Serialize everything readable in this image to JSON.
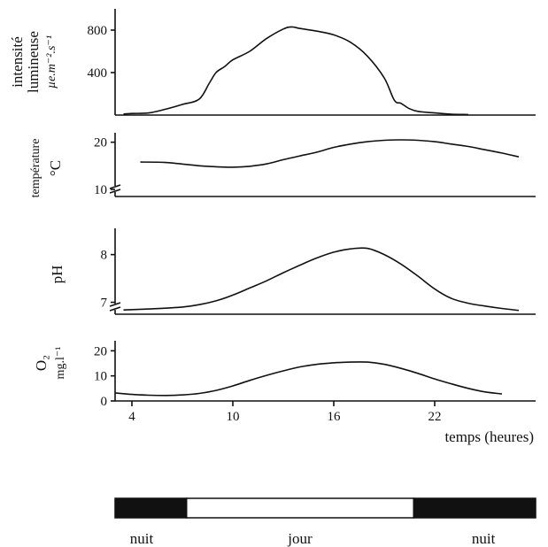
{
  "chart_data": [
    {
      "type": "line",
      "ylabel_lines": [
        "intensité",
        "lumineuse",
        "µe.m⁻².s⁻¹"
      ],
      "yticks": [
        400,
        800
      ],
      "ylim": [
        0,
        1000
      ],
      "xlim": [
        3,
        28
      ],
      "x": [
        3.5,
        4,
        5,
        6,
        7,
        8,
        8.6,
        9,
        9.5,
        10,
        11,
        12,
        13,
        13.5,
        14,
        15,
        16,
        17,
        18,
        19,
        19.6,
        20,
        20.5,
        21,
        22,
        23,
        24
      ],
      "values": [
        10,
        15,
        20,
        55,
        100,
        150,
        300,
        400,
        455,
        520,
        600,
        720,
        810,
        830,
        815,
        790,
        755,
        685,
        555,
        350,
        140,
        110,
        60,
        35,
        20,
        8,
        5
      ]
    },
    {
      "type": "line",
      "ylabel_lines": [
        "température",
        "°C"
      ],
      "yticks": [
        10,
        20
      ],
      "ylim": [
        8.5,
        22
      ],
      "axis_break": true,
      "xlim": [
        3,
        28
      ],
      "x": [
        4.5,
        6,
        8,
        9,
        10,
        11,
        12,
        13,
        14,
        15,
        16,
        17,
        18,
        19,
        20,
        21,
        22,
        23,
        24,
        25,
        26,
        27
      ],
      "values": [
        15.8,
        15.7,
        15.0,
        14.8,
        14.7,
        14.9,
        15.4,
        16.3,
        17.1,
        17.9,
        18.9,
        19.6,
        20.1,
        20.4,
        20.5,
        20.4,
        20.1,
        19.6,
        19.1,
        18.4,
        17.7,
        16.9
      ]
    },
    {
      "type": "line",
      "ylabel_lines": [
        "pH"
      ],
      "yticks": [
        7,
        8
      ],
      "ylim": [
        6.75,
        8.55
      ],
      "axis_break": true,
      "xlim": [
        3,
        28
      ],
      "x": [
        3.5,
        5,
        7,
        8,
        9,
        10,
        11,
        12,
        13,
        14,
        15,
        16,
        17,
        18,
        19,
        20,
        21,
        22,
        23,
        24,
        25,
        26,
        27
      ],
      "values": [
        6.84,
        6.86,
        6.9,
        6.95,
        7.03,
        7.15,
        7.3,
        7.45,
        7.62,
        7.78,
        7.93,
        8.05,
        8.12,
        8.13,
        8.0,
        7.8,
        7.55,
        7.28,
        7.08,
        6.98,
        6.92,
        6.87,
        6.83
      ]
    },
    {
      "type": "line",
      "ylabel_lines": [
        "O₂",
        "mg.l⁻¹"
      ],
      "yticks": [
        0,
        10,
        20
      ],
      "ylim": [
        0,
        24
      ],
      "xlim": [
        3,
        28
      ],
      "xticks": [
        4,
        10,
        16,
        22
      ],
      "xlabel": "temps (heures)",
      "x": [
        3,
        4,
        5,
        6,
        7,
        8,
        9,
        10,
        11,
        12,
        13,
        14,
        15,
        16,
        17,
        18,
        19,
        20,
        21,
        22,
        23,
        24,
        25,
        26
      ],
      "values": [
        3.2,
        2.6,
        2.3,
        2.2,
        2.4,
        3.0,
        4.2,
        6.0,
        8.2,
        10.2,
        12.0,
        13.6,
        14.6,
        15.2,
        15.5,
        15.5,
        14.6,
        13.0,
        11.0,
        8.8,
        6.8,
        5.0,
        3.6,
        2.8
      ]
    }
  ],
  "daynight": {
    "segments": [
      {
        "label": "nuit",
        "color": "#111111",
        "from": 0,
        "to": 0.17
      },
      {
        "label": "jour",
        "color": "#ffffff",
        "from": 0.17,
        "to": 0.71
      },
      {
        "label": "nuit",
        "color": "#111111",
        "from": 0.71,
        "to": 1
      }
    ]
  }
}
